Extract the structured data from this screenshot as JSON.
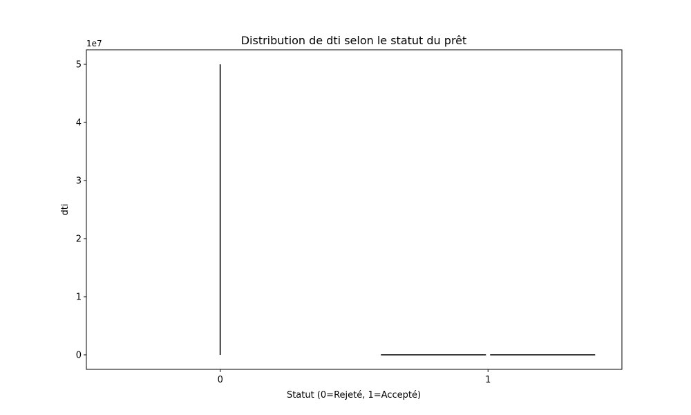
{
  "chart_data": {
    "type": "violin",
    "title": "Distribution de dti selon le statut du prêt",
    "xlabel": "Statut (0=Rejeté, 1=Accepté)",
    "ylabel": "dti",
    "y_scale_label": "1e7",
    "categories": [
      "0",
      "1"
    ],
    "ylim": [
      -2500000,
      52500000
    ],
    "y_ticks": [
      {
        "value": 0,
        "label": "0"
      },
      {
        "value": 10000000,
        "label": "1"
      },
      {
        "value": 20000000,
        "label": "2"
      },
      {
        "value": 30000000,
        "label": "3"
      },
      {
        "value": 40000000,
        "label": "4"
      },
      {
        "value": 50000000,
        "label": "5"
      }
    ],
    "violins": [
      {
        "category": "0",
        "min": 0,
        "max": 50000000,
        "shape": "thin-vertical",
        "median": 20
      },
      {
        "category": "1",
        "min": 0,
        "max": 60,
        "shape": "flat-horizontal",
        "median": 20
      }
    ],
    "grid": false,
    "legend": "none"
  }
}
